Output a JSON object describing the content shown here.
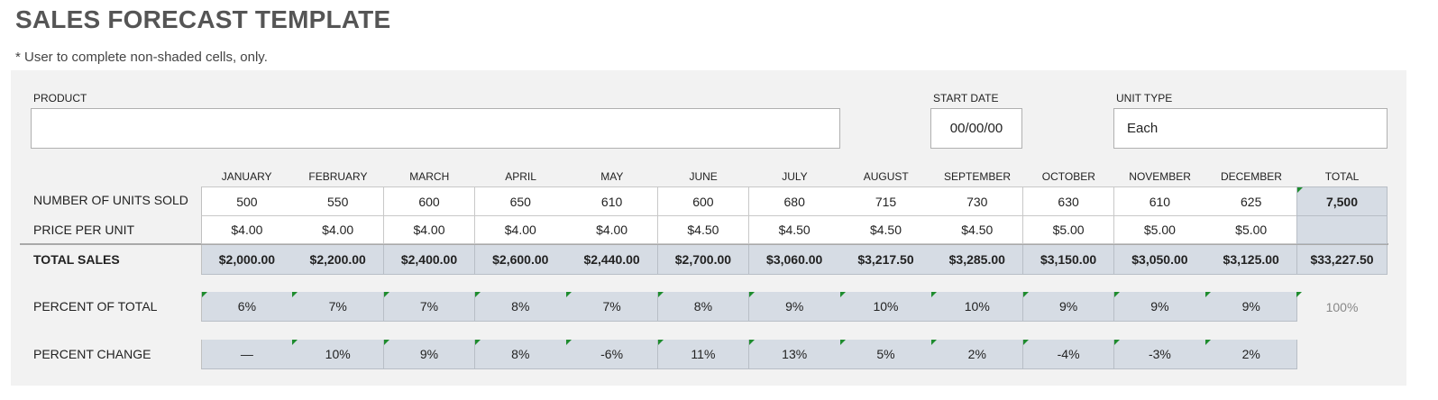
{
  "title": "SALES FORECAST TEMPLATE",
  "note": "* User to complete non-shaded cells, only.",
  "fields": {
    "product_label": "PRODUCT",
    "product_value": "",
    "start_date_label": "START DATE",
    "start_date_value": "00/00/00",
    "unit_type_label": "UNIT TYPE",
    "unit_type_value": "Each"
  },
  "months": [
    "JANUARY",
    "FEBRUARY",
    "MARCH",
    "APRIL",
    "MAY",
    "JUNE",
    "JULY",
    "AUGUST",
    "SEPTEMBER",
    "OCTOBER",
    "NOVEMBER",
    "DECEMBER"
  ],
  "total_header": "TOTAL",
  "rows": {
    "units": {
      "label": "NUMBER OF UNITS SOLD",
      "values": [
        "500",
        "550",
        "600",
        "650",
        "610",
        "600",
        "680",
        "715",
        "730",
        "630",
        "610",
        "625"
      ],
      "total": "7,500"
    },
    "price": {
      "label": "PRICE PER UNIT",
      "values": [
        "$4.00",
        "$4.00",
        "$4.00",
        "$4.00",
        "$4.00",
        "$4.50",
        "$4.50",
        "$4.50",
        "$4.50",
        "$5.00",
        "$5.00",
        "$5.00"
      ],
      "total": ""
    },
    "total_sales": {
      "label": "TOTAL SALES",
      "values": [
        "$2,000.00",
        "$2,200.00",
        "$2,400.00",
        "$2,600.00",
        "$2,440.00",
        "$2,700.00",
        "$3,060.00",
        "$3,217.50",
        "$3,285.00",
        "$3,150.00",
        "$3,050.00",
        "$3,125.00"
      ],
      "total": "$33,227.50"
    },
    "percent_total": {
      "label": "PERCENT OF TOTAL",
      "values": [
        "6%",
        "7%",
        "7%",
        "8%",
        "7%",
        "8%",
        "9%",
        "10%",
        "10%",
        "9%",
        "9%",
        "9%"
      ],
      "total": "100%"
    },
    "percent_change": {
      "label": "PERCENT CHANGE",
      "values": [
        "—",
        "10%",
        "9%",
        "8%",
        "-6%",
        "11%",
        "13%",
        "5%",
        "2%",
        "-4%",
        "-3%",
        "2%"
      ]
    }
  },
  "colors": {
    "shaded": "#d6dce4",
    "panel": "#f2f2f2",
    "indicator": "#1e8c2e"
  }
}
